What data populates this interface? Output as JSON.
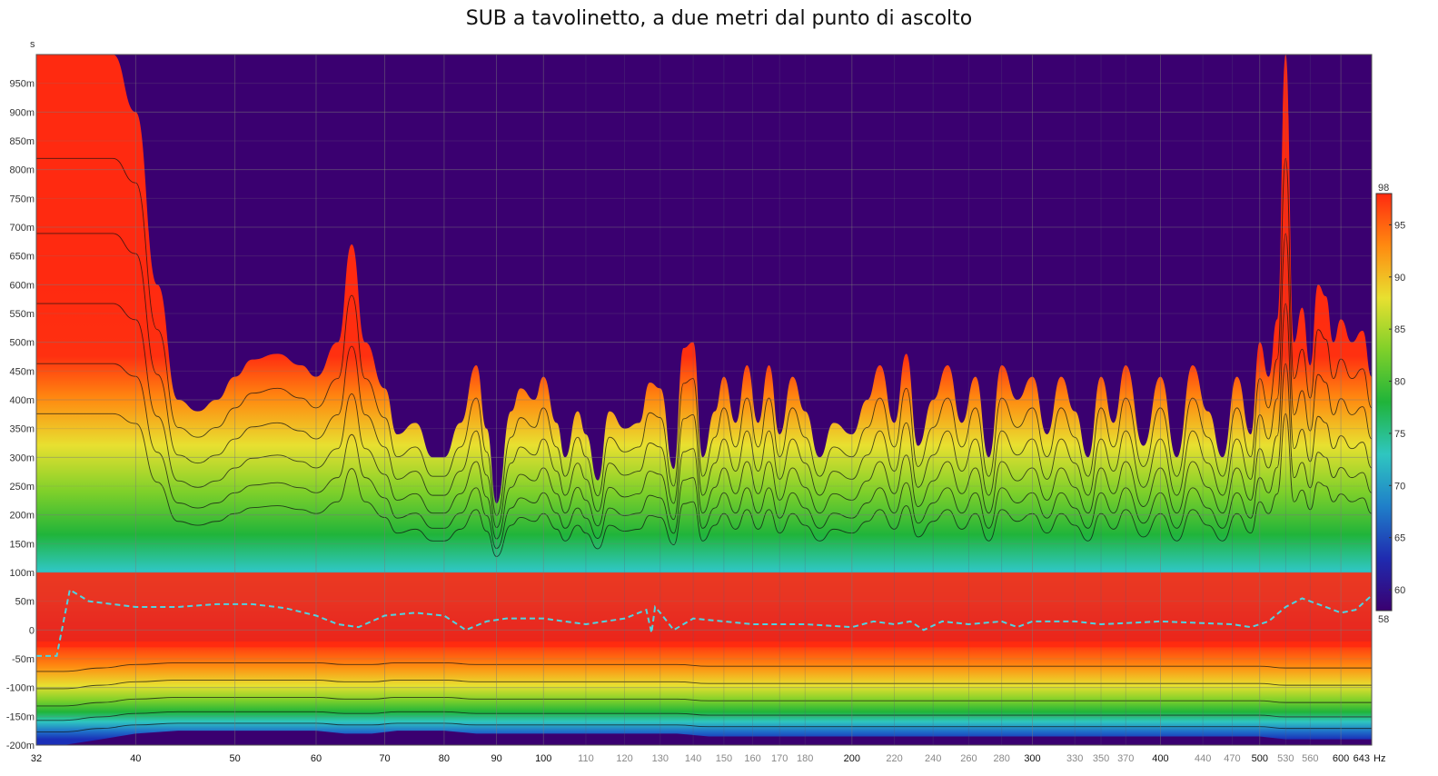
{
  "chart_data": {
    "type": "heatmap",
    "title": "SUB a tavolinetto, a due metri dal punto di ascolto",
    "y_unit_label": "s",
    "x_unit_label": "Hz",
    "x_scale": "log",
    "xlim": [
      32,
      643
    ],
    "ylim": [
      -0.2,
      1.0
    ],
    "x_ticks": [
      {
        "v": 32,
        "label": "32",
        "major": true
      },
      {
        "v": 40,
        "label": "40",
        "major": true
      },
      {
        "v": 50,
        "label": "50",
        "major": true
      },
      {
        "v": 60,
        "label": "60",
        "major": true
      },
      {
        "v": 70,
        "label": "70",
        "major": true
      },
      {
        "v": 80,
        "label": "80",
        "major": true
      },
      {
        "v": 90,
        "label": "90",
        "major": true
      },
      {
        "v": 100,
        "label": "100",
        "major": true
      },
      {
        "v": 110,
        "label": "110",
        "major": false
      },
      {
        "v": 120,
        "label": "120",
        "major": false
      },
      {
        "v": 130,
        "label": "130",
        "major": false
      },
      {
        "v": 140,
        "label": "140",
        "major": false
      },
      {
        "v": 150,
        "label": "150",
        "major": false
      },
      {
        "v": 160,
        "label": "160",
        "major": false
      },
      {
        "v": 170,
        "label": "170",
        "major": false
      },
      {
        "v": 180,
        "label": "180",
        "major": false
      },
      {
        "v": 200,
        "label": "200",
        "major": true
      },
      {
        "v": 220,
        "label": "220",
        "major": false
      },
      {
        "v": 240,
        "label": "240",
        "major": false
      },
      {
        "v": 260,
        "label": "260",
        "major": false
      },
      {
        "v": 280,
        "label": "280",
        "major": false
      },
      {
        "v": 300,
        "label": "300",
        "major": true
      },
      {
        "v": 330,
        "label": "330",
        "major": false
      },
      {
        "v": 350,
        "label": "350",
        "major": false
      },
      {
        "v": 370,
        "label": "370",
        "major": false
      },
      {
        "v": 400,
        "label": "400",
        "major": true
      },
      {
        "v": 440,
        "label": "440",
        "major": false
      },
      {
        "v": 470,
        "label": "470",
        "major": false
      },
      {
        "v": 500,
        "label": "500",
        "major": true
      },
      {
        "v": 530,
        "label": "530",
        "major": false
      },
      {
        "v": 560,
        "label": "560",
        "major": false
      },
      {
        "v": 600,
        "label": "600",
        "major": true
      },
      {
        "v": 643,
        "label": "643",
        "major": true
      }
    ],
    "y_ticks": [
      {
        "v": 0.95,
        "label": "950m"
      },
      {
        "v": 0.9,
        "label": "900m"
      },
      {
        "v": 0.85,
        "label": "850m"
      },
      {
        "v": 0.8,
        "label": "800m"
      },
      {
        "v": 0.75,
        "label": "750m"
      },
      {
        "v": 0.7,
        "label": "700m"
      },
      {
        "v": 0.65,
        "label": "650m"
      },
      {
        "v": 0.6,
        "label": "600m"
      },
      {
        "v": 0.55,
        "label": "550m"
      },
      {
        "v": 0.5,
        "label": "500m"
      },
      {
        "v": 0.45,
        "label": "450m"
      },
      {
        "v": 0.4,
        "label": "400m"
      },
      {
        "v": 0.35,
        "label": "350m"
      },
      {
        "v": 0.3,
        "label": "300m"
      },
      {
        "v": 0.25,
        "label": "250m"
      },
      {
        "v": 0.2,
        "label": "200m"
      },
      {
        "v": 0.15,
        "label": "150m"
      },
      {
        "v": 0.1,
        "label": "100m"
      },
      {
        "v": 0.05,
        "label": "50m"
      },
      {
        "v": 0,
        "label": "0"
      },
      {
        "v": -0.05,
        "label": "-50m"
      },
      {
        "v": -0.1,
        "label": "-100m"
      },
      {
        "v": -0.15,
        "label": "-150m"
      },
      {
        "v": -0.2,
        "label": "-200m"
      }
    ],
    "colorbar": {
      "range": [
        58,
        98
      ],
      "ticks": [
        60,
        65,
        70,
        75,
        80,
        85,
        90,
        95
      ],
      "min_label": "58",
      "max_label": "98",
      "colors": [
        "#3a0070",
        "#1f2bb0",
        "#1f7fc9",
        "#2fc6c0",
        "#20b43a",
        "#7fd02a",
        "#e8e030",
        "#ff8a10",
        "#ff2a10"
      ]
    },
    "background_level_color": "#3a0070",
    "grid": true,
    "decay_envelope": {
      "description_values": "upper time boundary (s) of energy decay above floor vs frequency",
      "freq": [
        32,
        34,
        36,
        38,
        40,
        42,
        44,
        46,
        48,
        50,
        52,
        55,
        58,
        60,
        63,
        65,
        67,
        70,
        72,
        75,
        78,
        80,
        83,
        86,
        88,
        90,
        93,
        95,
        98,
        100,
        103,
        105,
        108,
        110,
        113,
        116,
        120,
        124,
        127,
        130,
        134,
        137,
        140,
        143,
        147,
        150,
        154,
        158,
        162,
        166,
        170,
        175,
        180,
        186,
        192,
        200,
        207,
        213,
        220,
        226,
        232,
        240,
        248,
        256,
        264,
        272,
        280,
        290,
        300,
        310,
        320,
        330,
        340,
        350,
        360,
        370,
        385,
        400,
        415,
        430,
        445,
        460,
        475,
        490,
        500,
        510,
        520,
        530,
        540,
        550,
        560,
        570,
        580,
        590,
        600,
        615,
        630,
        643
      ],
      "t_top": [
        1.0,
        1.0,
        1.0,
        1.0,
        0.9,
        0.6,
        0.4,
        0.38,
        0.4,
        0.44,
        0.47,
        0.48,
        0.46,
        0.44,
        0.5,
        0.67,
        0.5,
        0.42,
        0.34,
        0.36,
        0.3,
        0.3,
        0.36,
        0.46,
        0.35,
        0.22,
        0.38,
        0.42,
        0.4,
        0.44,
        0.36,
        0.3,
        0.38,
        0.34,
        0.26,
        0.38,
        0.35,
        0.36,
        0.43,
        0.42,
        0.28,
        0.49,
        0.5,
        0.3,
        0.38,
        0.44,
        0.36,
        0.46,
        0.36,
        0.46,
        0.34,
        0.44,
        0.38,
        0.3,
        0.36,
        0.34,
        0.4,
        0.46,
        0.36,
        0.48,
        0.32,
        0.4,
        0.46,
        0.36,
        0.44,
        0.3,
        0.46,
        0.4,
        0.44,
        0.34,
        0.44,
        0.38,
        0.3,
        0.44,
        0.36,
        0.46,
        0.32,
        0.44,
        0.3,
        0.46,
        0.38,
        0.3,
        0.44,
        0.34,
        0.5,
        0.44,
        0.54,
        1.0,
        0.5,
        0.56,
        0.46,
        0.6,
        0.58,
        0.5,
        0.54,
        0.5,
        0.52,
        0.44
      ]
    },
    "bottom_floor": {
      "freq": [
        32,
        34,
        37,
        40,
        44,
        48,
        52,
        56,
        60,
        64,
        68,
        72,
        76,
        80,
        86,
        92,
        100,
        110,
        120,
        128,
        135,
        145,
        160,
        180,
        200,
        230,
        260,
        300,
        350,
        400,
        450,
        500,
        530,
        550,
        570,
        600,
        643
      ],
      "t_bottom": [
        -0.2,
        -0.2,
        -0.19,
        -0.18,
        -0.175,
        -0.175,
        -0.175,
        -0.175,
        -0.175,
        -0.18,
        -0.18,
        -0.175,
        -0.175,
        -0.175,
        -0.18,
        -0.18,
        -0.18,
        -0.18,
        -0.18,
        -0.18,
        -0.18,
        -0.185,
        -0.185,
        -0.185,
        -0.185,
        -0.185,
        -0.185,
        -0.185,
        -0.185,
        -0.185,
        -0.185,
        -0.185,
        -0.19,
        -0.19,
        -0.19,
        -0.19,
        -0.19
      ]
    },
    "peak_curve": {
      "color": "#4fd3e0",
      "style": "dashed",
      "freq": [
        32,
        33.5,
        34.5,
        36,
        40,
        44,
        48,
        52,
        56,
        60,
        63,
        66,
        70,
        75,
        80,
        84,
        88,
        92,
        100,
        110,
        120,
        126,
        127.5,
        128.5,
        130,
        134,
        140,
        150,
        160,
        180,
        200,
        210,
        220,
        228,
        235,
        245,
        260,
        280,
        290,
        300,
        330,
        350,
        370,
        400,
        440,
        470,
        490,
        510,
        530,
        550,
        580,
        600,
        620,
        643
      ],
      "t": [
        -0.045,
        -0.045,
        0.07,
        0.05,
        0.04,
        0.04,
        0.045,
        0.045,
        0.038,
        0.025,
        0.01,
        0.005,
        0.025,
        0.03,
        0.025,
        0.0,
        0.015,
        0.02,
        0.02,
        0.01,
        0.02,
        0.035,
        -0.005,
        0.04,
        0.03,
        0.0,
        0.02,
        0.015,
        0.01,
        0.01,
        0.005,
        0.015,
        0.01,
        0.015,
        0.0,
        0.015,
        0.01,
        0.015,
        0.005,
        0.015,
        0.015,
        0.01,
        0.012,
        0.015,
        0.012,
        0.01,
        0.005,
        0.015,
        0.04,
        0.055,
        0.04,
        0.03,
        0.035,
        0.06
      ]
    }
  }
}
